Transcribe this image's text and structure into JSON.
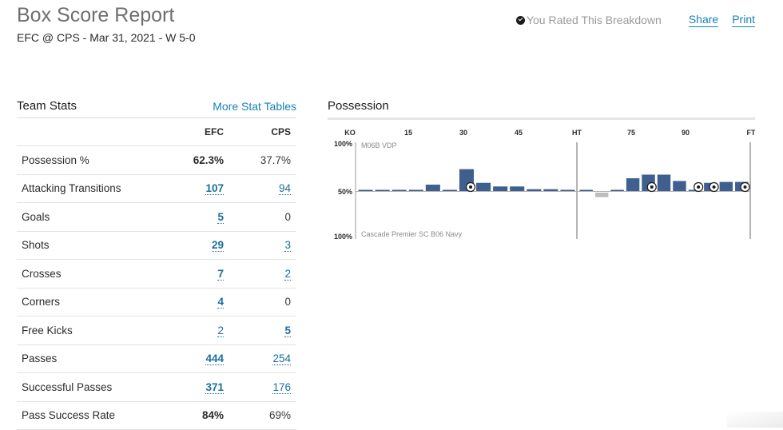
{
  "header": {
    "title": "Box Score Report",
    "subtitle": "EFC @ CPS - Mar 31, 2021 - W 5-0",
    "rated_label": "You Rated This Breakdown",
    "share_label": "Share",
    "print_label": "Print"
  },
  "team_stats": {
    "title": "Team Stats",
    "more_link": "More Stat Tables",
    "columns": [
      "EFC",
      "CPS"
    ],
    "rows": [
      {
        "label": "Possession %",
        "efc": "62.3%",
        "cps": "37.7%",
        "efc_link": false,
        "cps_link": false,
        "bold": "efc"
      },
      {
        "label": "Attacking Transitions",
        "efc": "107",
        "cps": "94",
        "efc_link": true,
        "cps_link": true,
        "bold": "efc"
      },
      {
        "label": "Goals",
        "efc": "5",
        "cps": "0",
        "efc_link": true,
        "cps_link": false,
        "bold": "efc"
      },
      {
        "label": "Shots",
        "efc": "29",
        "cps": "3",
        "efc_link": true,
        "cps_link": true,
        "bold": "efc"
      },
      {
        "label": "Crosses",
        "efc": "7",
        "cps": "2",
        "efc_link": true,
        "cps_link": true,
        "bold": "efc"
      },
      {
        "label": "Corners",
        "efc": "4",
        "cps": "0",
        "efc_link": true,
        "cps_link": false,
        "bold": "efc"
      },
      {
        "label": "Free Kicks",
        "efc": "2",
        "cps": "5",
        "efc_link": true,
        "cps_link": true,
        "bold": "cps"
      },
      {
        "label": "Passes",
        "efc": "444",
        "cps": "254",
        "efc_link": true,
        "cps_link": true,
        "bold": "efc"
      },
      {
        "label": "Successful Passes",
        "efc": "371",
        "cps": "176",
        "efc_link": true,
        "cps_link": true,
        "bold": "efc"
      },
      {
        "label": "Pass Success Rate",
        "efc": "84%",
        "cps": "69%",
        "efc_link": false,
        "cps_link": false,
        "bold": "efc"
      }
    ]
  },
  "possession": {
    "title": "Possession",
    "colors": {
      "efc": "#3f5f8f",
      "cps": "#bdbdbd"
    },
    "chart_data": {
      "type": "bar",
      "x_ticks": [
        "KO",
        "15",
        "30",
        "45",
        "HT",
        "75",
        "90",
        "FT"
      ],
      "y_ticks": [
        "100%",
        "50%",
        "100%"
      ],
      "top_team": "M06B VDP",
      "bottom_team": "Cascade Premier SC B06 Navy",
      "first_half_bars": [
        50,
        50,
        50,
        50,
        57,
        51,
        74,
        59,
        55,
        55,
        52,
        52,
        51
      ],
      "second_half_bars": [
        50,
        45,
        50,
        64,
        68,
        68,
        61,
        51,
        59,
        60,
        60
      ],
      "goal_markers": [
        {
          "half": 1,
          "index": 6
        },
        {
          "half": 2,
          "index": 4
        },
        {
          "half": 2,
          "index": 7
        },
        {
          "half": 2,
          "index": 8
        },
        {
          "half": 2,
          "index": 10
        }
      ]
    }
  }
}
